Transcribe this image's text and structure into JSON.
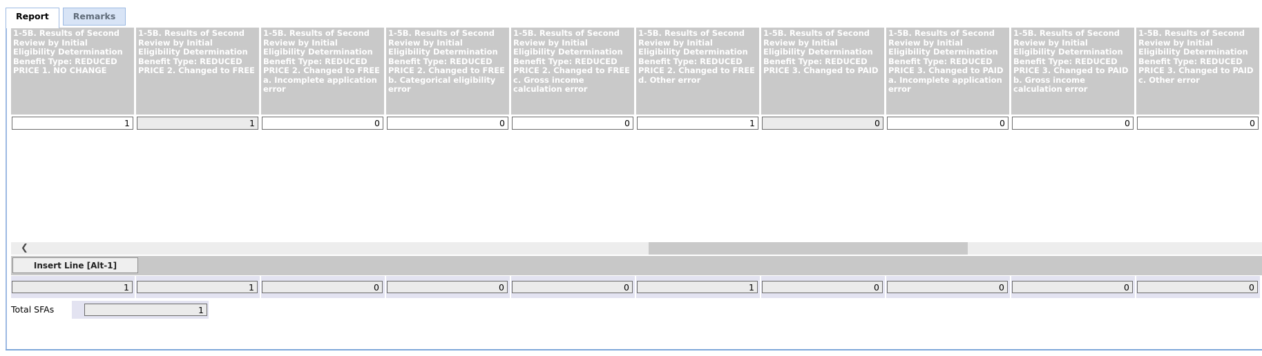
{
  "tabs": [
    {
      "label": "Report"
    },
    {
      "label": "Remarks"
    }
  ],
  "icons": {
    "scroll_left": "❮"
  },
  "buttons": {
    "insert_line": "Insert Line [Alt-1]"
  },
  "table": {
    "columns": [
      "1-5B. Results of Second Review by Initial Eligibility Determination Benefit Type: REDUCED PRICE 1. NO CHANGE",
      "1-5B. Results of Second Review by Initial Eligibility Determination Benefit Type: REDUCED PRICE 2. Changed to FREE",
      "1-5B. Results of Second Review by Initial Eligibility Determination Benefit Type: REDUCED PRICE 2. Changed to FREE a. Incomplete application error",
      "1-5B. Results of Second Review by Initial Eligibility Determination Benefit Type: REDUCED PRICE 2. Changed to FREE b. Categorical eligibility error",
      "1-5B. Results of Second Review by Initial Eligibility Determination Benefit Type: REDUCED PRICE 2. Changed to FREE c. Gross income calculation error",
      "1-5B. Results of Second Review by Initial Eligibility Determination Benefit Type: REDUCED PRICE 2. Changed to FREE d. Other error",
      "1-5B. Results of Second Review by Initial Eligibility Determination Benefit Type: REDUCED PRICE 3. Changed to PAID",
      "1-5B. Results of Second Review by Initial Eligibility Determination Benefit Type: REDUCED PRICE 3. Changed to PAID a. Incomplete application error",
      "1-5B. Results of Second Review by Initial Eligibility Determination Benefit Type: REDUCED PRICE 3. Changed to PAID b. Gross income calculation error",
      "1-5B. Results of Second Review by Initial Eligibility Determination Benefit Type: REDUCED PRICE 3. Changed to PAID c. Other error"
    ],
    "row_values": [
      "1",
      "1",
      "0",
      "0",
      "0",
      "1",
      "0",
      "0",
      "0",
      "0"
    ],
    "total_values": [
      "1",
      "1",
      "0",
      "0",
      "0",
      "1",
      "0",
      "0",
      "0",
      "0"
    ]
  },
  "total_sfas": {
    "label": "Total SFAs",
    "value": "1"
  },
  "colors": {
    "header_bg": "#c9c9c9",
    "tab_border": "#9cb9e2",
    "inactive_tab_bg": "#d8e4f6",
    "totals_bg": "#e3e3f1",
    "readonly_bg": "#ebebeb",
    "band_bg": "#c8c8c8",
    "scroll_track": "#ededed",
    "scroll_thumb": "#c9c9c9"
  }
}
